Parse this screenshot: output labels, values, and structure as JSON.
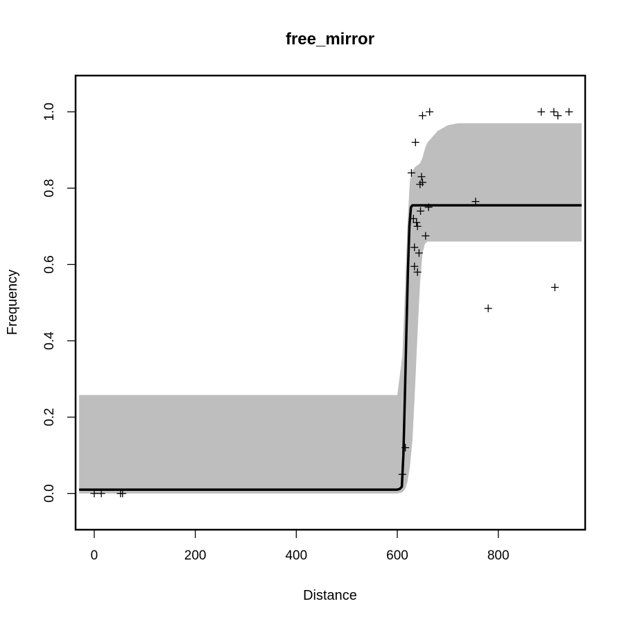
{
  "chart_data": {
    "type": "line",
    "title": "free_mirror",
    "xlabel": "Distance",
    "ylabel": "Frequency",
    "xlim": [
      -37,
      972
    ],
    "ylim": [
      -0.095,
      1.095
    ],
    "grid": false,
    "legend": "none",
    "x_ticks": [
      "0",
      "200",
      "400",
      "600",
      "800"
    ],
    "y_ticks": [
      "0.0",
      "0.2",
      "0.4",
      "0.6",
      "0.8",
      "1.0"
    ],
    "colors": {
      "band": "#bebebe",
      "line": "#000000",
      "points": "#000000"
    },
    "confidence_band": {
      "x": [
        -30,
        600,
        610,
        615,
        620,
        625,
        630,
        635,
        640,
        645,
        650,
        655,
        660,
        670,
        680,
        700,
        720,
        965
      ],
      "lower": [
        0.0,
        0.0,
        0.003,
        0.01,
        0.03,
        0.07,
        0.14,
        0.27,
        0.42,
        0.55,
        0.63,
        0.655,
        0.66,
        0.66,
        0.66,
        0.66,
        0.66,
        0.66
      ],
      "upper": [
        0.258,
        0.258,
        0.36,
        0.52,
        0.7,
        0.82,
        0.845,
        0.855,
        0.86,
        0.865,
        0.88,
        0.905,
        0.92,
        0.935,
        0.95,
        0.965,
        0.97,
        0.97
      ]
    },
    "fit_line": {
      "x": [
        -30,
        600,
        605,
        609,
        612,
        615,
        618,
        621,
        624,
        627,
        630,
        965
      ],
      "y": [
        0.01,
        0.01,
        0.012,
        0.018,
        0.1,
        0.25,
        0.42,
        0.58,
        0.7,
        0.75,
        0.755,
        0.755
      ]
    },
    "points": {
      "x": [
        0,
        14,
        52,
        56,
        610,
        616,
        628,
        632,
        634,
        634,
        636,
        638,
        640,
        640,
        643,
        645,
        646,
        648,
        650,
        650,
        656,
        662,
        664,
        755,
        780,
        885,
        910,
        912,
        918,
        940
      ],
      "y": [
        0.0,
        0.0,
        0.0,
        0.0,
        0.05,
        0.12,
        0.84,
        0.72,
        0.595,
        0.645,
        0.92,
        0.71,
        0.7,
        0.58,
        0.63,
        0.81,
        0.74,
        0.83,
        0.815,
        0.99,
        0.675,
        0.75,
        1.0,
        0.765,
        0.485,
        1.0,
        1.0,
        0.54,
        0.99,
        1.0
      ]
    }
  }
}
